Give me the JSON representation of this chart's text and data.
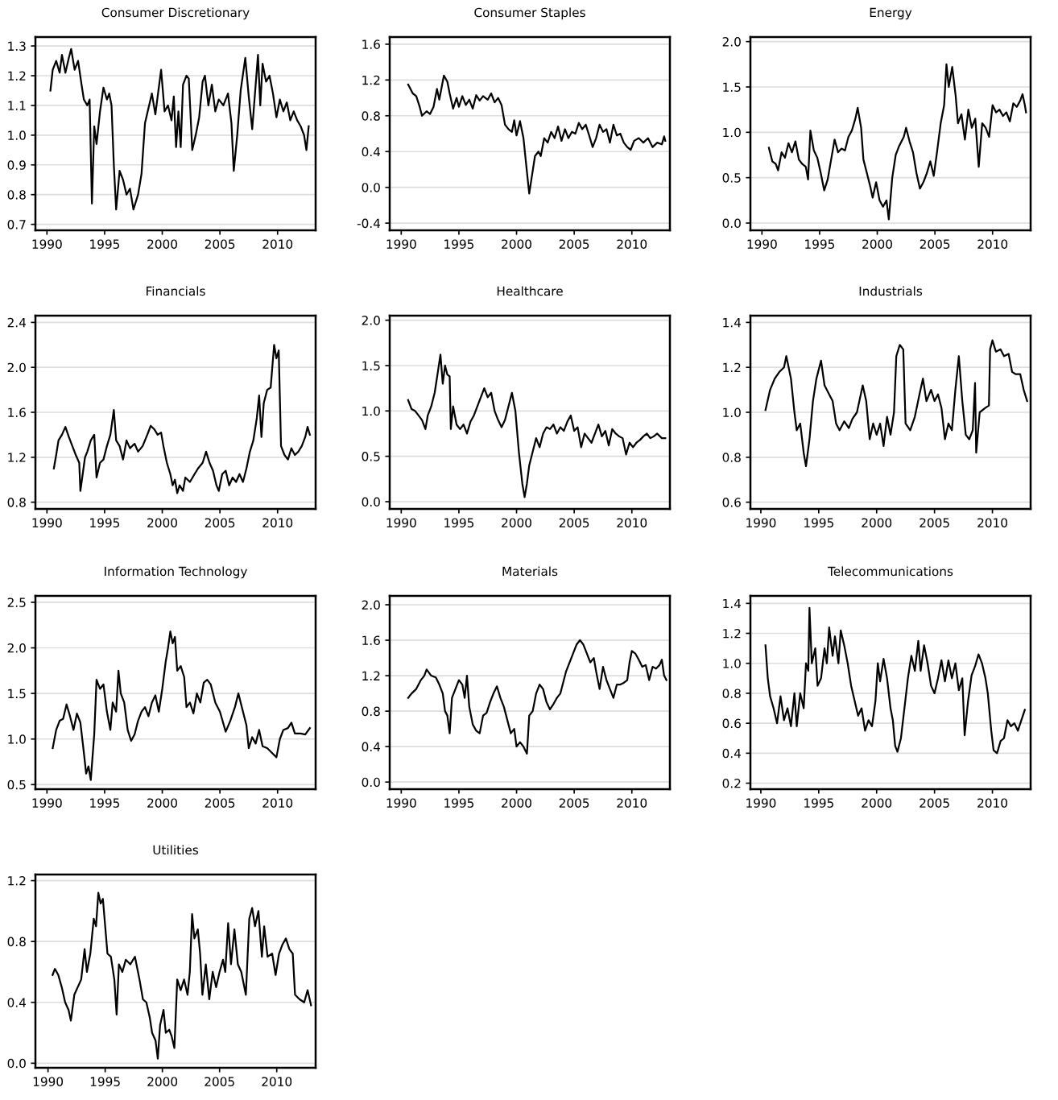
{
  "chart_data": [
    {
      "type": "line",
      "title": "Consumer Discretionary",
      "color": "#000000",
      "grid": "y",
      "xlim": [
        1989.0,
        2013.3
      ],
      "xticks": [
        1990,
        1995,
        2000,
        2005,
        2010
      ],
      "ylim": [
        0.68,
        1.33
      ],
      "yticks": [
        0.7,
        0.8,
        0.9,
        {
          "value": 1,
          "label": "1.0"
        },
        1.1,
        1.2,
        1.3
      ],
      "x": [
        1990.3,
        1990.5,
        1990.8,
        1991.1,
        1991.3,
        1991.6,
        1991.9,
        1992.1,
        1992.4,
        1992.7,
        1993.0,
        1993.2,
        1993.5,
        1993.7,
        1993.9,
        1994.1,
        1994.3,
        1994.6,
        1994.9,
        1995.2,
        1995.4,
        1995.6,
        1995.8,
        1996.0,
        1996.3,
        1996.6,
        1996.9,
        1997.2,
        1997.5,
        1997.9,
        1998.2,
        1998.5,
        1998.8,
        1999.1,
        1999.4,
        1999.9,
        2000.2,
        2000.5,
        2000.8,
        2001.0,
        2001.2,
        2001.4,
        2001.6,
        2001.8,
        2002.1,
        2002.3,
        2002.6,
        2002.9,
        2003.2,
        2003.5,
        2003.7,
        2004.0,
        2004.3,
        2004.6,
        2004.9,
        2005.3,
        2005.7,
        2006.0,
        2006.2,
        2006.5,
        2006.8,
        2007.2,
        2007.5,
        2007.8,
        2008.1,
        2008.3,
        2008.5,
        2008.7,
        2009.0,
        2009.3,
        2009.6,
        2009.9,
        2010.2,
        2010.5,
        2010.8,
        2011.1,
        2011.4,
        2011.7,
        2012.0,
        2012.3,
        2012.5,
        2012.7
      ],
      "values": [
        1.15,
        1.22,
        1.25,
        1.21,
        1.27,
        1.21,
        1.26,
        1.29,
        1.22,
        1.25,
        1.17,
        1.12,
        1.1,
        1.12,
        0.77,
        1.03,
        0.97,
        1.08,
        1.16,
        1.12,
        1.14,
        1.1,
        0.9,
        0.75,
        0.88,
        0.85,
        0.8,
        0.82,
        0.75,
        0.8,
        0.87,
        1.04,
        1.09,
        1.14,
        1.07,
        1.22,
        1.08,
        1.1,
        1.05,
        1.13,
        0.96,
        1.08,
        0.96,
        1.17,
        1.2,
        1.19,
        0.95,
        1.0,
        1.06,
        1.18,
        1.2,
        1.1,
        1.17,
        1.08,
        1.12,
        1.1,
        1.14,
        1.04,
        0.88,
        1.0,
        1.15,
        1.26,
        1.13,
        1.02,
        1.17,
        1.27,
        1.1,
        1.24,
        1.18,
        1.2,
        1.14,
        1.06,
        1.12,
        1.08,
        1.11,
        1.05,
        1.08,
        1.05,
        1.03,
        1.0,
        0.95,
        1.03
      ]
    },
    {
      "type": "line",
      "title": "Consumer Staples",
      "color": "#000000",
      "grid": "y",
      "xlim": [
        1989.0,
        2013.3
      ],
      "xticks": [
        1990,
        1995,
        2000,
        2005,
        2010
      ],
      "ylim": [
        -0.48,
        1.68
      ],
      "yticks": [
        -0.4,
        {
          "value": 0,
          "label": "0.0"
        },
        0.4,
        0.8,
        1.2,
        1.6
      ],
      "x": [
        1990.6,
        1991.0,
        1991.3,
        1991.6,
        1991.8,
        1992.2,
        1992.5,
        1992.8,
        1993.1,
        1993.3,
        1993.7,
        1994.0,
        1994.2,
        1994.5,
        1994.8,
        1995.0,
        1995.3,
        1995.6,
        1995.9,
        1996.2,
        1996.5,
        1996.8,
        1997.1,
        1997.5,
        1997.8,
        1998.1,
        1998.4,
        1998.7,
        1999.0,
        1999.3,
        1999.6,
        1999.8,
        2000.0,
        2000.3,
        2000.6,
        2000.8,
        2001.0,
        2001.1,
        2001.3,
        2001.6,
        2001.9,
        2002.1,
        2002.4,
        2002.7,
        2003.0,
        2003.3,
        2003.6,
        2003.9,
        2004.2,
        2004.5,
        2004.8,
        2005.1,
        2005.4,
        2005.7,
        2006.0,
        2006.3,
        2006.6,
        2006.9,
        2007.2,
        2007.5,
        2007.8,
        2008.1,
        2008.4,
        2008.7,
        2009.0,
        2009.3,
        2009.6,
        2009.9,
        2010.2,
        2010.6,
        2011.0,
        2011.4,
        2011.8,
        2012.2,
        2012.6,
        2012.8,
        2012.9
      ],
      "values": [
        1.15,
        1.05,
        1.02,
        0.9,
        0.8,
        0.85,
        0.82,
        0.9,
        1.1,
        0.98,
        1.25,
        1.18,
        1.05,
        0.88,
        1.0,
        0.9,
        1.02,
        0.92,
        0.98,
        0.88,
        1.03,
        0.97,
        1.02,
        0.98,
        1.05,
        0.95,
        1.0,
        0.92,
        0.7,
        0.65,
        0.62,
        0.75,
        0.58,
        0.74,
        0.55,
        0.3,
        0.05,
        -0.07,
        0.1,
        0.35,
        0.4,
        0.35,
        0.55,
        0.5,
        0.62,
        0.55,
        0.68,
        0.52,
        0.65,
        0.55,
        0.62,
        0.6,
        0.72,
        0.65,
        0.7,
        0.58,
        0.45,
        0.55,
        0.7,
        0.62,
        0.65,
        0.5,
        0.7,
        0.58,
        0.6,
        0.5,
        0.45,
        0.42,
        0.52,
        0.55,
        0.5,
        0.55,
        0.45,
        0.5,
        0.48,
        0.57,
        0.52
      ]
    },
    {
      "type": "line",
      "title": "Energy",
      "color": "#000000",
      "grid": "y",
      "xlim": [
        1989.0,
        2013.3
      ],
      "xticks": [
        1990,
        1995,
        2000,
        2005,
        2010
      ],
      "ylim": [
        -0.08,
        2.05
      ],
      "yticks": [
        {
          "value": 0,
          "label": "0.0"
        },
        0.5,
        {
          "value": 1,
          "label": "1.0"
        },
        1.5,
        {
          "value": 2,
          "label": "2.0"
        }
      ],
      "x": [
        1990.6,
        1990.9,
        1991.2,
        1991.4,
        1991.7,
        1992.0,
        1992.3,
        1992.6,
        1992.9,
        1993.2,
        1993.5,
        1993.8,
        1994.0,
        1994.2,
        1994.5,
        1994.8,
        1995.1,
        1995.4,
        1995.7,
        1996.0,
        1996.3,
        1996.6,
        1996.9,
        1997.2,
        1997.5,
        1997.8,
        1998.1,
        1998.3,
        1998.6,
        1998.8,
        1999.1,
        1999.4,
        1999.6,
        1999.9,
        2000.2,
        2000.5,
        2000.8,
        2001.0,
        2001.3,
        2001.6,
        2001.9,
        2002.3,
        2002.5,
        2002.8,
        2003.1,
        2003.4,
        2003.7,
        2004.0,
        2004.3,
        2004.6,
        2004.9,
        2005.2,
        2005.5,
        2005.8,
        2006.0,
        2006.2,
        2006.5,
        2006.8,
        2007.0,
        2007.3,
        2007.6,
        2007.9,
        2008.2,
        2008.5,
        2008.8,
        2009.1,
        2009.4,
        2009.7,
        2010.0,
        2010.3,
        2010.6,
        2010.9,
        2011.2,
        2011.5,
        2011.8,
        2012.1,
        2012.4,
        2012.6,
        2012.8,
        2012.9
      ],
      "values": [
        0.83,
        0.68,
        0.65,
        0.58,
        0.78,
        0.72,
        0.88,
        0.78,
        0.9,
        0.7,
        0.65,
        0.62,
        0.48,
        1.02,
        0.8,
        0.72,
        0.55,
        0.36,
        0.48,
        0.7,
        0.92,
        0.78,
        0.82,
        0.8,
        0.95,
        1.02,
        1.15,
        1.27,
        1.05,
        0.7,
        0.55,
        0.4,
        0.28,
        0.45,
        0.25,
        0.18,
        0.25,
        0.04,
        0.5,
        0.75,
        0.85,
        0.95,
        1.05,
        0.9,
        0.78,
        0.55,
        0.38,
        0.45,
        0.55,
        0.68,
        0.52,
        0.8,
        1.1,
        1.3,
        1.75,
        1.5,
        1.72,
        1.4,
        1.1,
        1.2,
        0.92,
        1.25,
        1.05,
        1.15,
        0.62,
        1.1,
        1.05,
        0.95,
        1.3,
        1.22,
        1.25,
        1.18,
        1.22,
        1.12,
        1.32,
        1.28,
        1.35,
        1.42,
        1.3,
        1.22
      ]
    },
    {
      "type": "line",
      "title": "Financials",
      "color": "#000000",
      "grid": "y",
      "xlim": [
        1989.0,
        2013.3
      ],
      "xticks": [
        1990,
        1995,
        2000,
        2005,
        2010
      ],
      "ylim": [
        0.74,
        2.46
      ],
      "yticks": [
        0.8,
        1.2,
        1.6,
        {
          "value": 2,
          "label": "2.0"
        },
        2.4
      ],
      "x": [
        1990.6,
        1990.8,
        1991.0,
        1991.3,
        1991.6,
        1991.9,
        1992.2,
        1992.5,
        1992.8,
        1992.9,
        1993.1,
        1993.3,
        1993.5,
        1993.8,
        1994.1,
        1994.3,
        1994.6,
        1994.9,
        1995.2,
        1995.5,
        1995.8,
        1996.0,
        1996.3,
        1996.6,
        1996.9,
        1997.2,
        1997.6,
        1997.9,
        1998.3,
        1998.7,
        1999.0,
        1999.3,
        1999.6,
        1999.9,
        2000.1,
        2000.4,
        2000.7,
        2000.9,
        2001.1,
        2001.3,
        2001.5,
        2001.8,
        2002.0,
        2002.4,
        2002.8,
        2003.1,
        2003.5,
        2003.8,
        2004.1,
        2004.4,
        2004.7,
        2004.9,
        2005.2,
        2005.5,
        2005.8,
        2006.1,
        2006.4,
        2006.7,
        2007.0,
        2007.3,
        2007.6,
        2007.9,
        2008.2,
        2008.4,
        2008.6,
        2008.8,
        2009.1,
        2009.4,
        2009.7,
        2009.9,
        2010.1,
        2010.3,
        2010.6,
        2010.9,
        2011.2,
        2011.5,
        2011.8,
        2012.1,
        2012.4,
        2012.6,
        2012.8
      ],
      "values": [
        1.1,
        1.22,
        1.35,
        1.4,
        1.47,
        1.38,
        1.3,
        1.22,
        1.15,
        0.9,
        1.05,
        1.2,
        1.25,
        1.35,
        1.4,
        1.02,
        1.15,
        1.18,
        1.3,
        1.4,
        1.62,
        1.35,
        1.3,
        1.18,
        1.35,
        1.28,
        1.32,
        1.25,
        1.3,
        1.4,
        1.48,
        1.45,
        1.4,
        1.42,
        1.3,
        1.15,
        1.05,
        0.95,
        1.0,
        0.88,
        0.95,
        0.9,
        1.02,
        0.98,
        1.05,
        1.1,
        1.15,
        1.25,
        1.15,
        1.08,
        0.95,
        0.9,
        1.05,
        1.08,
        0.95,
        1.02,
        0.98,
        1.05,
        0.98,
        1.1,
        1.25,
        1.35,
        1.55,
        1.75,
        1.38,
        1.68,
        1.8,
        1.82,
        2.2,
        2.08,
        2.15,
        1.3,
        1.22,
        1.18,
        1.28,
        1.22,
        1.25,
        1.3,
        1.38,
        1.47,
        1.4
      ]
    },
    {
      "type": "line",
      "title": "Healthcare",
      "color": "#000000",
      "grid": "y",
      "xlim": [
        1989.0,
        2013.3
      ],
      "xticks": [
        1990,
        1995,
        2000,
        2005,
        2010
      ],
      "ylim": [
        -0.08,
        2.05
      ],
      "yticks": [
        {
          "value": 0,
          "label": "0.0"
        },
        0.5,
        {
          "value": 1,
          "label": "1.0"
        },
        1.5,
        {
          "value": 2,
          "label": "2.0"
        }
      ],
      "x": [
        1990.6,
        1990.9,
        1991.2,
        1991.5,
        1991.8,
        1992.1,
        1992.3,
        1992.6,
        1992.9,
        1993.2,
        1993.4,
        1993.6,
        1993.8,
        1994.0,
        1994.2,
        1994.3,
        1994.5,
        1994.8,
        1995.1,
        1995.4,
        1995.7,
        1996.0,
        1996.3,
        1996.6,
        1996.9,
        1997.2,
        1997.5,
        1997.8,
        1998.1,
        1998.4,
        1998.7,
        1999.0,
        1999.3,
        1999.6,
        1999.9,
        2000.2,
        2000.5,
        2000.7,
        2000.9,
        2001.1,
        2001.4,
        2001.7,
        2002.0,
        2002.3,
        2002.6,
        2002.9,
        2003.2,
        2003.5,
        2003.8,
        2004.1,
        2004.4,
        2004.7,
        2005.0,
        2005.3,
        2005.6,
        2005.9,
        2006.2,
        2006.5,
        2006.8,
        2007.1,
        2007.4,
        2007.7,
        2008.0,
        2008.3,
        2008.6,
        2008.9,
        2009.2,
        2009.5,
        2009.8,
        2010.1,
        2010.4,
        2010.7,
        2011.0,
        2011.3,
        2011.6,
        2011.9,
        2012.2,
        2012.6,
        2012.9
      ],
      "values": [
        1.12,
        1.02,
        1.0,
        0.95,
        0.9,
        0.8,
        0.95,
        1.05,
        1.2,
        1.45,
        1.62,
        1.3,
        1.5,
        1.4,
        1.38,
        0.8,
        1.05,
        0.85,
        0.8,
        0.85,
        0.75,
        0.88,
        0.95,
        1.05,
        1.15,
        1.25,
        1.15,
        1.2,
        1.0,
        0.9,
        0.82,
        0.9,
        1.05,
        1.2,
        1.0,
        0.55,
        0.2,
        0.05,
        0.2,
        0.4,
        0.55,
        0.7,
        0.6,
        0.75,
        0.82,
        0.8,
        0.85,
        0.75,
        0.82,
        0.78,
        0.88,
        0.95,
        0.78,
        0.82,
        0.6,
        0.75,
        0.7,
        0.65,
        0.75,
        0.85,
        0.72,
        0.78,
        0.62,
        0.8,
        0.75,
        0.72,
        0.7,
        0.52,
        0.65,
        0.6,
        0.65,
        0.68,
        0.72,
        0.75,
        0.7,
        0.72,
        0.75,
        0.7,
        0.7
      ]
    },
    {
      "type": "line",
      "title": "Industrials",
      "color": "#000000",
      "grid": "y",
      "xlim": [
        1989.1,
        2013.3
      ],
      "xticks": [
        1990,
        1995,
        2000,
        2005,
        2010
      ],
      "ylim": [
        0.57,
        1.43
      ],
      "yticks": [
        0.6,
        0.8,
        {
          "value": 1,
          "label": "1.0"
        },
        1.2,
        1.4
      ],
      "x": [
        1990.4,
        1990.8,
        1991.2,
        1991.6,
        1992.0,
        1992.2,
        1992.6,
        1992.9,
        1993.1,
        1993.4,
        1993.7,
        1993.9,
        1994.2,
        1994.5,
        1994.8,
        1995.2,
        1995.5,
        1995.9,
        1996.2,
        1996.5,
        1996.8,
        1997.2,
        1997.6,
        1997.9,
        1998.3,
        1998.8,
        1999.1,
        1999.4,
        1999.7,
        2000.0,
        2000.3,
        2000.6,
        2000.9,
        2001.2,
        2001.5,
        2001.7,
        2002.0,
        2002.3,
        2002.5,
        2002.9,
        2003.3,
        2003.7,
        2004.0,
        2004.3,
        2004.7,
        2005.0,
        2005.3,
        2005.6,
        2005.9,
        2006.2,
        2006.5,
        2006.8,
        2007.1,
        2007.4,
        2007.7,
        2008.0,
        2008.3,
        2008.5,
        2008.6,
        2008.9,
        2009.4,
        2009.7,
        2009.8,
        2010.0,
        2010.3,
        2010.7,
        2011.0,
        2011.4,
        2011.7,
        2012.0,
        2012.4,
        2012.7,
        2013.0
      ],
      "values": [
        1.01,
        1.1,
        1.15,
        1.18,
        1.2,
        1.25,
        1.15,
        1.0,
        0.92,
        0.95,
        0.82,
        0.76,
        0.88,
        1.05,
        1.15,
        1.23,
        1.12,
        1.08,
        1.05,
        0.95,
        0.92,
        0.96,
        0.93,
        0.97,
        1.0,
        1.12,
        1.05,
        0.88,
        0.95,
        0.9,
        0.95,
        0.85,
        0.98,
        0.9,
        1.0,
        1.25,
        1.3,
        1.28,
        0.95,
        0.92,
        0.98,
        1.08,
        1.15,
        1.05,
        1.1,
        1.05,
        1.08,
        1.02,
        0.88,
        0.95,
        0.92,
        1.1,
        1.25,
        1.05,
        0.9,
        0.88,
        0.92,
        1.13,
        0.82,
        1.0,
        1.02,
        1.03,
        1.28,
        1.32,
        1.27,
        1.28,
        1.25,
        1.26,
        1.18,
        1.17,
        1.17,
        1.1,
        1.05
      ]
    },
    {
      "type": "line",
      "title": "Information Technology",
      "color": "#000000",
      "grid": "y",
      "xlim": [
        1989.0,
        2013.3
      ],
      "xticks": [
        1990,
        1995,
        2000,
        2005,
        2010
      ],
      "ylim": [
        0.45,
        2.57
      ],
      "yticks": [
        0.5,
        {
          "value": 1,
          "label": "1.0"
        },
        1.5,
        {
          "value": 2,
          "label": "2.0"
        },
        2.5
      ],
      "x": [
        1990.5,
        1990.8,
        1991.1,
        1991.4,
        1991.7,
        1992.0,
        1992.3,
        1992.6,
        1992.9,
        1993.2,
        1993.4,
        1993.6,
        1993.8,
        1994.1,
        1994.3,
        1994.6,
        1994.9,
        1995.2,
        1995.5,
        1995.7,
        1996.0,
        1996.2,
        1996.4,
        1996.7,
        1997.0,
        1997.3,
        1997.6,
        1997.9,
        1998.2,
        1998.5,
        1998.8,
        1999.1,
        1999.4,
        1999.7,
        2000.0,
        2000.3,
        2000.5,
        2000.7,
        2000.9,
        2001.1,
        2001.3,
        2001.6,
        2001.9,
        2002.1,
        2002.4,
        2002.7,
        2003.0,
        2003.3,
        2003.6,
        2003.9,
        2004.2,
        2004.6,
        2005.0,
        2005.5,
        2005.9,
        2006.3,
        2006.6,
        2007.0,
        2007.3,
        2007.5,
        2007.8,
        2008.1,
        2008.4,
        2008.7,
        2009.1,
        2009.5,
        2009.9,
        2010.2,
        2010.5,
        2010.9,
        2011.2,
        2011.5,
        2012.0,
        2012.4,
        2012.8
      ],
      "values": [
        0.9,
        1.1,
        1.2,
        1.22,
        1.38,
        1.25,
        1.1,
        1.28,
        1.18,
        0.85,
        0.62,
        0.7,
        0.55,
        1.05,
        1.65,
        1.55,
        1.6,
        1.3,
        1.1,
        1.4,
        1.3,
        1.75,
        1.5,
        1.4,
        1.1,
        0.98,
        1.05,
        1.2,
        1.3,
        1.35,
        1.25,
        1.4,
        1.48,
        1.3,
        1.55,
        1.85,
        2.0,
        2.18,
        2.05,
        2.12,
        1.75,
        1.8,
        1.68,
        1.35,
        1.4,
        1.28,
        1.5,
        1.4,
        1.62,
        1.65,
        1.6,
        1.4,
        1.3,
        1.08,
        1.2,
        1.35,
        1.5,
        1.3,
        1.15,
        0.9,
        1.02,
        0.95,
        1.1,
        0.92,
        0.9,
        0.85,
        0.8,
        1.0,
        1.1,
        1.12,
        1.18,
        1.06,
        1.06,
        1.05,
        1.12
      ]
    },
    {
      "type": "line",
      "title": "Materials",
      "color": "#000000",
      "grid": "y",
      "xlim": [
        1989.0,
        2013.3
      ],
      "xticks": [
        1990,
        1995,
        2000,
        2005,
        2010
      ],
      "ylim": [
        -0.08,
        2.1
      ],
      "yticks": [
        {
          "value": 0,
          "label": "0.0"
        },
        0.4,
        0.8,
        1.2,
        1.6,
        {
          "value": 2,
          "label": "2.0"
        }
      ],
      "x": [
        1990.6,
        1990.9,
        1991.3,
        1991.7,
        1992.0,
        1992.2,
        1992.6,
        1993.0,
        1993.3,
        1993.6,
        1993.8,
        1994.0,
        1994.2,
        1994.4,
        1994.7,
        1995.0,
        1995.3,
        1995.5,
        1995.7,
        1995.9,
        1996.2,
        1996.5,
        1996.8,
        1997.1,
        1997.4,
        1997.7,
        1998.0,
        1998.3,
        1998.6,
        1998.9,
        1999.2,
        1999.5,
        1999.8,
        2000.0,
        2000.3,
        2000.6,
        2000.9,
        2001.1,
        2001.4,
        2001.7,
        2002.0,
        2002.3,
        2002.6,
        2002.9,
        2003.2,
        2003.5,
        2003.8,
        2004.0,
        2004.3,
        2004.6,
        2004.9,
        2005.2,
        2005.5,
        2005.8,
        2006.1,
        2006.4,
        2006.7,
        2006.9,
        2007.2,
        2007.5,
        2007.8,
        2008.1,
        2008.4,
        2008.7,
        2009.0,
        2009.3,
        2009.6,
        2009.8,
        2010.0,
        2010.3,
        2010.6,
        2010.9,
        2011.2,
        2011.5,
        2011.8,
        2012.1,
        2012.4,
        2012.6,
        2012.8,
        2013.0
      ],
      "values": [
        0.95,
        1.0,
        1.05,
        1.15,
        1.2,
        1.27,
        1.2,
        1.18,
        1.1,
        1.0,
        0.8,
        0.75,
        0.55,
        0.95,
        1.05,
        1.15,
        1.1,
        0.95,
        1.2,
        0.85,
        0.65,
        0.58,
        0.55,
        0.75,
        0.78,
        0.9,
        1.0,
        1.08,
        0.95,
        0.85,
        0.7,
        0.55,
        0.6,
        0.4,
        0.45,
        0.4,
        0.32,
        0.75,
        0.8,
        1.0,
        1.1,
        1.05,
        0.9,
        0.82,
        0.88,
        0.95,
        1.0,
        1.1,
        1.25,
        1.35,
        1.45,
        1.55,
        1.6,
        1.55,
        1.45,
        1.35,
        1.4,
        1.25,
        1.05,
        1.3,
        1.15,
        1.05,
        0.95,
        1.1,
        1.1,
        1.12,
        1.15,
        1.35,
        1.48,
        1.45,
        1.38,
        1.3,
        1.32,
        1.15,
        1.3,
        1.28,
        1.32,
        1.38,
        1.2,
        1.15
      ]
    },
    {
      "type": "line",
      "title": "Telecommunications",
      "color": "#000000",
      "grid": "y",
      "xlim": [
        1989.1,
        2013.3
      ],
      "xticks": [
        1990,
        1995,
        2000,
        2005,
        2010
      ],
      "ylim": [
        0.16,
        1.45
      ],
      "yticks": [
        0.2,
        0.4,
        0.6,
        0.8,
        {
          "value": 1,
          "label": "1.0"
        },
        1.2,
        1.4
      ],
      "x": [
        1990.4,
        1990.6,
        1990.8,
        1991.1,
        1991.4,
        1991.7,
        1992.0,
        1992.3,
        1992.6,
        1992.9,
        1993.1,
        1993.4,
        1993.7,
        1993.9,
        1994.1,
        1994.2,
        1994.4,
        1994.7,
        1994.9,
        1995.2,
        1995.5,
        1995.7,
        1995.9,
        1996.2,
        1996.4,
        1996.7,
        1996.9,
        1997.2,
        1997.5,
        1997.8,
        1998.1,
        1998.4,
        1998.7,
        1999.0,
        1999.3,
        1999.6,
        1999.9,
        2000.1,
        2000.3,
        2000.6,
        2000.9,
        2001.2,
        2001.4,
        2001.6,
        2001.8,
        2002.1,
        2002.4,
        2002.7,
        2003.0,
        2003.3,
        2003.6,
        2003.8,
        2004.1,
        2004.4,
        2004.7,
        2005.0,
        2005.3,
        2005.6,
        2005.9,
        2006.2,
        2006.5,
        2006.8,
        2007.1,
        2007.4,
        2007.6,
        2007.9,
        2008.2,
        2008.5,
        2008.8,
        2009.1,
        2009.4,
        2009.6,
        2009.9,
        2010.1,
        2010.4,
        2010.7,
        2011.0,
        2011.3,
        2011.6,
        2011.9,
        2012.2,
        2012.5,
        2012.8
      ],
      "values": [
        1.12,
        0.9,
        0.78,
        0.7,
        0.6,
        0.78,
        0.62,
        0.7,
        0.58,
        0.8,
        0.58,
        0.8,
        0.7,
        1.0,
        0.95,
        1.37,
        1.0,
        1.1,
        0.85,
        0.9,
        1.1,
        1.0,
        1.24,
        1.05,
        1.18,
        1.0,
        1.22,
        1.12,
        1.0,
        0.85,
        0.75,
        0.65,
        0.7,
        0.55,
        0.62,
        0.58,
        0.75,
        1.0,
        0.88,
        1.03,
        0.9,
        0.7,
        0.62,
        0.45,
        0.41,
        0.5,
        0.7,
        0.9,
        1.05,
        0.95,
        1.15,
        0.95,
        1.12,
        1.0,
        0.85,
        0.8,
        0.9,
        1.02,
        0.88,
        1.02,
        0.9,
        1.0,
        0.82,
        0.9,
        0.52,
        0.75,
        0.92,
        0.98,
        1.06,
        1.0,
        0.9,
        0.8,
        0.55,
        0.42,
        0.4,
        0.48,
        0.5,
        0.62,
        0.58,
        0.6,
        0.55,
        0.62,
        0.69
      ]
    },
    {
      "type": "line",
      "title": "Utilities",
      "color": "#000000",
      "grid": "y",
      "xlim": [
        1988.9,
        2013.4
      ],
      "xticks": [
        1990,
        1995,
        2000,
        2005,
        2010
      ],
      "ylim": [
        -0.03,
        1.24
      ],
      "yticks": [
        {
          "value": 0,
          "label": "0.0"
        },
        0.4,
        0.8,
        1.2
      ],
      "x": [
        1990.4,
        1990.6,
        1990.9,
        1991.2,
        1991.5,
        1991.8,
        1992.0,
        1992.3,
        1992.6,
        1992.9,
        1993.2,
        1993.4,
        1993.7,
        1994.0,
        1994.2,
        1994.4,
        1994.6,
        1994.8,
        1995.0,
        1995.2,
        1995.5,
        1995.8,
        1996.0,
        1996.2,
        1996.5,
        1996.8,
        1997.2,
        1997.6,
        1998.0,
        1998.3,
        1998.6,
        1998.9,
        1999.1,
        1999.4,
        1999.6,
        1999.8,
        2000.1,
        2000.3,
        2000.6,
        2000.8,
        2001.05,
        2001.3,
        2001.6,
        2001.9,
        2002.2,
        2002.4,
        2002.6,
        2002.8,
        2003.1,
        2003.3,
        2003.5,
        2003.8,
        2004.1,
        2004.4,
        2004.7,
        2005.0,
        2005.3,
        2005.5,
        2005.75,
        2006.0,
        2006.3,
        2006.6,
        2006.9,
        2007.3,
        2007.6,
        2007.85,
        2008.1,
        2008.4,
        2008.7,
        2008.9,
        2009.2,
        2009.6,
        2009.9,
        2010.2,
        2010.5,
        2010.8,
        2011.1,
        2011.4,
        2011.6,
        2012.0,
        2012.4,
        2012.7,
        2013.0
      ],
      "values": [
        0.58,
        0.62,
        0.58,
        0.5,
        0.4,
        0.35,
        0.28,
        0.45,
        0.5,
        0.55,
        0.75,
        0.6,
        0.72,
        0.95,
        0.9,
        1.12,
        1.05,
        1.08,
        0.9,
        0.72,
        0.7,
        0.55,
        0.32,
        0.65,
        0.6,
        0.68,
        0.65,
        0.7,
        0.55,
        0.42,
        0.4,
        0.3,
        0.2,
        0.15,
        0.03,
        0.25,
        0.35,
        0.2,
        0.22,
        0.18,
        0.1,
        0.55,
        0.48,
        0.55,
        0.45,
        0.6,
        0.98,
        0.82,
        0.88,
        0.72,
        0.45,
        0.65,
        0.42,
        0.6,
        0.5,
        0.6,
        0.68,
        0.6,
        0.92,
        0.65,
        0.88,
        0.65,
        0.6,
        0.45,
        0.95,
        1.02,
        0.9,
        1.0,
        0.7,
        0.9,
        0.7,
        0.72,
        0.58,
        0.72,
        0.78,
        0.82,
        0.75,
        0.72,
        0.45,
        0.42,
        0.4,
        0.48,
        0.38
      ]
    }
  ]
}
